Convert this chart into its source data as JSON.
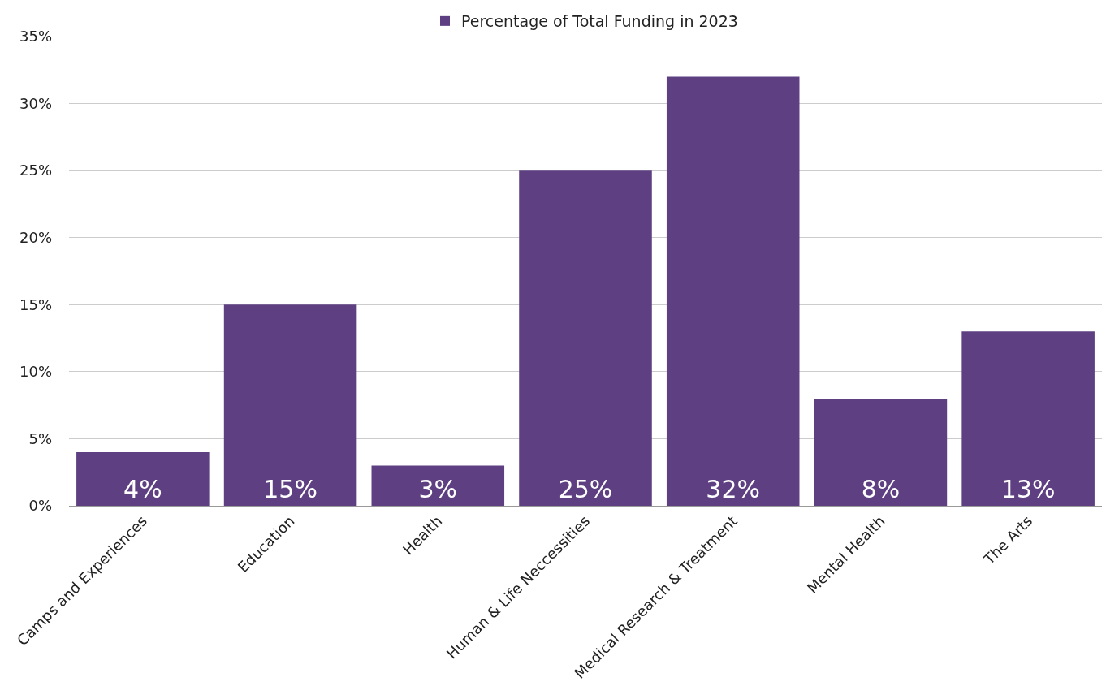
{
  "chart_data": {
    "type": "bar",
    "categories": [
      "Camps and Experiences",
      "Education",
      "Health",
      "Human & Life Neccessities",
      "Medical Research & Treatment",
      "Mental Health",
      "The Arts"
    ],
    "series": [
      {
        "name": "Percentage of Total Funding in 2023",
        "color": "#5e3f82",
        "values": [
          4,
          15,
          3,
          25,
          32,
          8,
          13
        ],
        "value_labels": [
          "4%",
          "15%",
          "3%",
          "25%",
          "32%",
          "8%",
          "13%"
        ]
      }
    ],
    "ylim": [
      0,
      35
    ],
    "yticks": [
      {
        "value": 0,
        "label": "0%"
      },
      {
        "value": 5,
        "label": "5%"
      },
      {
        "value": 10,
        "label": "10%"
      },
      {
        "value": 15,
        "label": "15%"
      },
      {
        "value": 20,
        "label": "20%"
      },
      {
        "value": 25,
        "label": "25%"
      },
      {
        "value": 30,
        "label": "30%"
      },
      {
        "value": 35,
        "label": "35%"
      }
    ],
    "grid": "y",
    "legend": "top"
  }
}
